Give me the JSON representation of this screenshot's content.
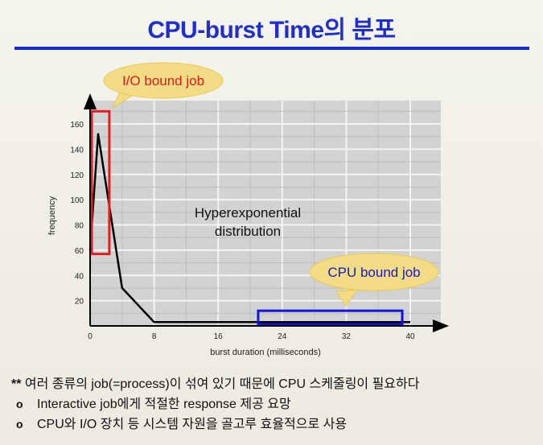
{
  "title": "CPU-burst Time의 분포",
  "chart_data": {
    "type": "line",
    "xlabel": "burst duration (milliseconds)",
    "ylabel": "frequency",
    "xlim": [
      0,
      40
    ],
    "ylim": [
      0,
      170
    ],
    "xticks": [
      0,
      8,
      16,
      24,
      32,
      40
    ],
    "yticks": [
      20,
      40,
      60,
      80,
      100,
      120,
      140,
      160
    ],
    "grid": true,
    "series": [
      {
        "x": [
          0,
          1,
          4,
          8,
          40
        ],
        "y": [
          60,
          152,
          30,
          3,
          3
        ]
      }
    ],
    "annotations": {
      "center_text_line1": "Hyperexponential",
      "center_text_line2": "distribution",
      "io_callout": "I/O bound job",
      "cpu_callout": "CPU bound job"
    },
    "highlight_colors": {
      "io_box": "#e02020",
      "cpu_box": "#1414d8"
    }
  },
  "notes": {
    "line1_stars": "**",
    "line1_text": " 여러 종류의 job(=process)이 섞여 있기 때문에 CPU 스케줄링이 필요하다",
    "bullets": [
      "Interactive job에게 적절한 response 제공 요망",
      "CPU와 I/O 장치 등 시스템 자원을 골고루 효율적으로 사용"
    ],
    "bullet_symbol": "o"
  },
  "colors": {
    "title": "#1f2ecc",
    "callout_fill": "#f2dc86",
    "plot_bg": "#d2d2d2"
  }
}
